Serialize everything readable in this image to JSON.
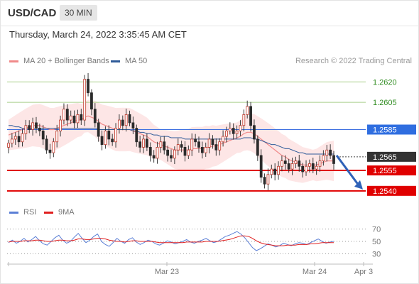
{
  "header": {
    "symbol": "USD/CAD",
    "timeframe": "30 MIN"
  },
  "datetime": "Thursday, March 24, 2022 3:35:45 AM CET",
  "legend_main": [
    {
      "label": "MA 20 + Bollinger Bands",
      "color": "#f08a8a"
    },
    {
      "label": "MA 50",
      "color": "#2f5b99"
    }
  ],
  "legend_rsi": [
    {
      "label": "RSI",
      "color": "#5b7fd6"
    },
    {
      "label": "9MA",
      "color": "#e02020"
    }
  ],
  "credit": "Research © 2022 Trading Central",
  "chart_data": [
    {
      "type": "candlestick",
      "name": "USD/CAD 30 MIN",
      "ylim": [
        1.253,
        1.2628
      ],
      "x_ticks": [
        "Mar 23",
        "Mar 24",
        "Apr 3"
      ],
      "current_price": "1.2565",
      "levels": [
        {
          "value": "1.2620",
          "kind": "target",
          "color": "#a9cf8a",
          "label_color": "#2e8b1f"
        },
        {
          "value": "1.2605",
          "kind": "target",
          "color": "#a9cf8a",
          "label_color": "#2e8b1f"
        },
        {
          "value": "1.2585",
          "kind": "pivot",
          "color": "#3d6fe0",
          "label_bg": "#2f6ee0"
        },
        {
          "value": "1.2555",
          "kind": "support",
          "color": "#e00000",
          "label_bg": "#e00000"
        },
        {
          "value": "1.2540",
          "kind": "support",
          "color": "#e00000",
          "label_bg": "#e00000"
        }
      ],
      "close_series": [
        1.2575,
        1.2578,
        1.258,
        1.2576,
        1.2582,
        1.2588,
        1.2585,
        1.259,
        1.2586,
        1.2584,
        1.2578,
        1.257,
        1.2568,
        1.2576,
        1.2584,
        1.2592,
        1.26,
        1.2592,
        1.2595,
        1.259,
        1.2596,
        1.2592,
        1.2622,
        1.2612,
        1.26,
        1.259,
        1.258,
        1.2574,
        1.2584,
        1.2578,
        1.2576,
        1.2586,
        1.2592,
        1.2588,
        1.2596,
        1.259,
        1.2586,
        1.2576,
        1.2572,
        1.2578,
        1.2572,
        1.2566,
        1.2564,
        1.2572,
        1.2576,
        1.257,
        1.2566,
        1.2564,
        1.257,
        1.2574,
        1.2572,
        1.2566,
        1.257,
        1.2578,
        1.2576,
        1.2572,
        1.2568,
        1.2572,
        1.2578,
        1.2574,
        1.257,
        1.2576,
        1.258,
        1.2584,
        1.2586,
        1.2582,
        1.2584,
        1.2588,
        1.2596,
        1.2602,
        1.2588,
        1.2578,
        1.2566,
        1.255,
        1.2545,
        1.2552,
        1.2556,
        1.2552,
        1.2558,
        1.2562,
        1.256,
        1.2556,
        1.256,
        1.2562,
        1.2558,
        1.2554,
        1.2558,
        1.256,
        1.2556,
        1.2558,
        1.2562,
        1.2566,
        1.257,
        1.2566,
        1.256
      ],
      "ma20": [
        1.2581,
        1.2582,
        1.2583,
        1.2584,
        1.2585,
        1.2586,
        1.2587,
        1.2588,
        1.2588,
        1.2588,
        1.2587,
        1.2586,
        1.2585,
        1.2585,
        1.2586,
        1.2587,
        1.2588,
        1.2589,
        1.259,
        1.2591,
        1.2592,
        1.2592,
        1.2594,
        1.2595,
        1.2594,
        1.2593,
        1.2591,
        1.2589,
        1.2588,
        1.2587,
        1.2586,
        1.2585,
        1.2585,
        1.2585,
        1.2585,
        1.2585,
        1.2584,
        1.2583,
        1.2582,
        1.2581,
        1.258,
        1.2578,
        1.2576,
        1.2575,
        1.2574,
        1.2573,
        1.2572,
        1.2571,
        1.257,
        1.257,
        1.257,
        1.257,
        1.257,
        1.2571,
        1.2571,
        1.2571,
        1.2571,
        1.2572,
        1.2572,
        1.2573,
        1.2573,
        1.2574,
        1.2575,
        1.2576,
        1.2577,
        1.2578,
        1.2579,
        1.258,
        1.2582,
        1.2583,
        1.2583,
        1.2582,
        1.258,
        1.2578,
        1.2576,
        1.2574,
        1.2572,
        1.257,
        1.2568,
        1.2566,
        1.2565,
        1.2563,
        1.2562,
        1.2561,
        1.256,
        1.2559,
        1.2559,
        1.2559,
        1.2559,
        1.2559,
        1.256,
        1.2561,
        1.2562,
        1.2562,
        1.2562
      ],
      "ma50": [
        1.2588,
        1.2588,
        1.2587,
        1.2587,
        1.2586,
        1.2586,
        1.2586,
        1.2586,
        1.2586,
        1.2586,
        1.2586,
        1.2586,
        1.2586,
        1.2586,
        1.2586,
        1.2586,
        1.2586,
        1.2586,
        1.2586,
        1.2586,
        1.2586,
        1.2586,
        1.2586,
        1.2586,
        1.2586,
        1.2586,
        1.2585,
        1.2585,
        1.2585,
        1.2585,
        1.2585,
        1.2585,
        1.2585,
        1.2585,
        1.2585,
        1.2585,
        1.2584,
        1.2584,
        1.2583,
        1.2583,
        1.2582,
        1.2582,
        1.2581,
        1.2581,
        1.258,
        1.258,
        1.258,
        1.2579,
        1.2579,
        1.2579,
        1.2579,
        1.2578,
        1.2578,
        1.2578,
        1.2578,
        1.2578,
        1.2578,
        1.2578,
        1.2578,
        1.2578,
        1.2578,
        1.2578,
        1.2578,
        1.2578,
        1.2578,
        1.2578,
        1.2578,
        1.2578,
        1.2579,
        1.2579,
        1.2579,
        1.2578,
        1.2578,
        1.2577,
        1.2576,
        1.2575,
        1.2574,
        1.2574,
        1.2573,
        1.2572,
        1.2571,
        1.2571,
        1.257,
        1.2569,
        1.2568,
        1.2568,
        1.2567,
        1.2567,
        1.2567,
        1.2567,
        1.2567,
        1.2567,
        1.2567,
        1.2567,
        1.2567
      ],
      "bollinger_width": 0.0016,
      "forecast_arrow": {
        "from": 1.2566,
        "to": 1.254
      }
    },
    {
      "type": "line",
      "name": "RSI",
      "ylim": [
        20,
        80
      ],
      "y_ticks": [
        "70",
        "50",
        "30"
      ],
      "series": [
        {
          "name": "RSI",
          "values": [
            48,
            52,
            47,
            50,
            55,
            49,
            53,
            58,
            51,
            46,
            44,
            50,
            56,
            60,
            52,
            47,
            50,
            57,
            63,
            55,
            48,
            52,
            58,
            62,
            50,
            45,
            42,
            48,
            55,
            50,
            47,
            53,
            56,
            49,
            45,
            48,
            52,
            50,
            46,
            44,
            47,
            51,
            49,
            46,
            48,
            50,
            53,
            49,
            47,
            50,
            52,
            55,
            51,
            48,
            50,
            54,
            58,
            60,
            63,
            66,
            62,
            56,
            48,
            40,
            35,
            38,
            42,
            46,
            44,
            41,
            43,
            47,
            45,
            43,
            46,
            48,
            47,
            45,
            48,
            51,
            54,
            50,
            47,
            49,
            50
          ]
        },
        {
          "name": "9MA",
          "values": [
            49,
            50,
            50,
            50,
            51,
            51,
            51,
            52,
            52,
            51,
            50,
            50,
            51,
            52,
            52,
            51,
            51,
            52,
            54,
            54,
            53,
            53,
            54,
            55,
            55,
            54,
            52,
            51,
            50,
            50,
            49,
            50,
            51,
            51,
            50,
            50,
            50,
            50,
            49,
            48,
            48,
            48,
            48,
            48,
            48,
            48,
            49,
            49,
            49,
            49,
            49,
            50,
            50,
            50,
            50,
            51,
            52,
            53,
            55,
            57,
            59,
            59,
            58,
            55,
            51,
            48,
            46,
            45,
            44,
            43,
            43,
            43,
            44,
            44,
            44,
            45,
            45,
            45,
            46,
            46,
            47,
            48,
            48,
            48,
            48
          ]
        }
      ]
    }
  ]
}
